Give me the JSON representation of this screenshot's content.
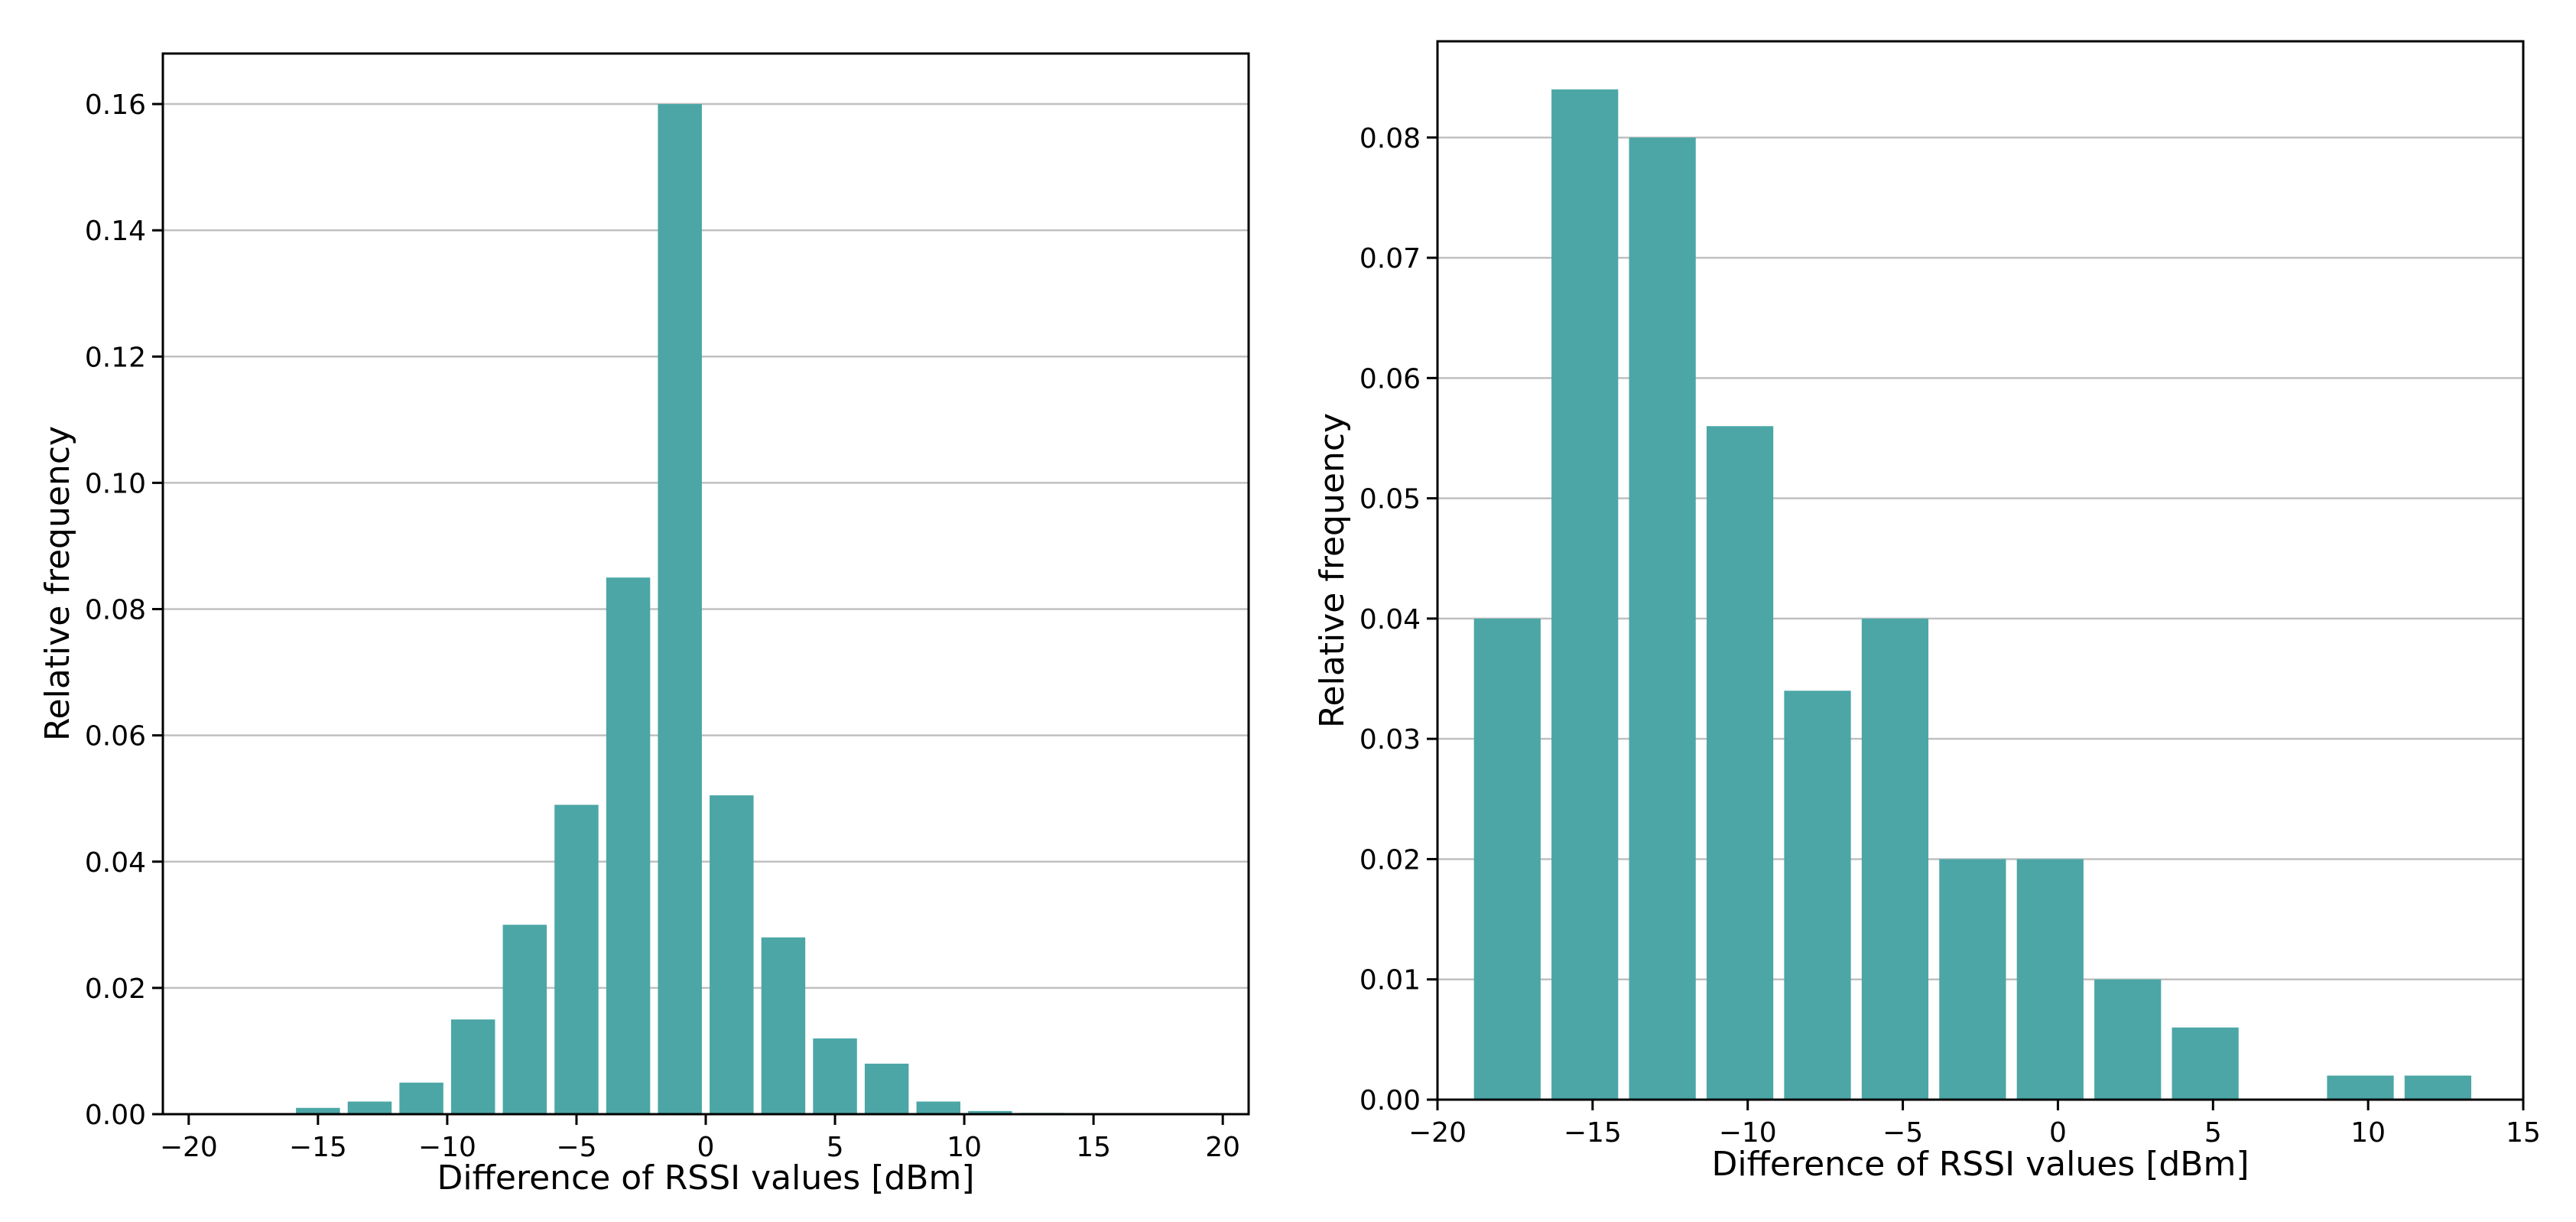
{
  "colors": {
    "bar": "#4ca6a6",
    "grid": "#c0c0c0",
    "axis": "#000000"
  },
  "chart_data": [
    {
      "type": "bar",
      "title": "",
      "xlabel": "Difference of RSSI values [dBm]",
      "ylabel": "Relative frequency",
      "xlim": [
        -21,
        21
      ],
      "ylim": [
        0,
        0.168
      ],
      "grid": "horizontal",
      "bar_width": 1.7,
      "x": [
        -19,
        -17,
        -15,
        -13,
        -11,
        -9,
        -7,
        -5,
        -3,
        -1,
        1,
        3,
        5,
        7,
        9,
        11,
        13,
        15,
        17,
        19
      ],
      "values": [
        0.0,
        0.0,
        0.001,
        0.002,
        0.005,
        0.015,
        0.03,
        0.049,
        0.085,
        0.16,
        0.0505,
        0.028,
        0.012,
        0.008,
        0.002,
        0.0005,
        0.0002,
        0.0,
        0.0,
        0.0
      ],
      "xticks": [
        -20,
        -15,
        -10,
        -5,
        0,
        5,
        10,
        15,
        20
      ],
      "xtick_labels": [
        "−20",
        "−15",
        "−10",
        "−5",
        "0",
        "5",
        "10",
        "15",
        "20"
      ],
      "yticks": [
        0.0,
        0.02,
        0.04,
        0.06,
        0.08,
        0.1,
        0.12,
        0.14,
        0.16
      ],
      "ytick_labels": [
        "0.00",
        "0.02",
        "0.04",
        "0.06",
        "0.08",
        "0.10",
        "0.12",
        "0.14",
        "0.16"
      ]
    },
    {
      "type": "bar",
      "title": "",
      "xlabel": "Difference of RSSI values [dBm]",
      "ylabel": "Relative frequency",
      "xlim": [
        -20,
        15
      ],
      "ylim": [
        0,
        0.088
      ],
      "grid": "horizontal",
      "bar_width": 2.15,
      "x": [
        -17.75,
        -15.25,
        -12.75,
        -10.25,
        -7.75,
        -5.25,
        -2.75,
        -0.25,
        2.25,
        4.75,
        7.25,
        9.75,
        12.25
      ],
      "values": [
        0.04,
        0.084,
        0.08,
        0.056,
        0.034,
        0.04,
        0.02,
        0.02,
        0.01,
        0.006,
        0.0,
        0.002,
        0.002
      ],
      "xticks": [
        -20,
        -15,
        -10,
        -5,
        0,
        5,
        10,
        15
      ],
      "xtick_labels": [
        "−20",
        "−15",
        "−10",
        "−5",
        "0",
        "5",
        "10",
        "15"
      ],
      "yticks": [
        0.0,
        0.01,
        0.02,
        0.03,
        0.04,
        0.05,
        0.06,
        0.07,
        0.08
      ],
      "ytick_labels": [
        "0.00",
        "0.01",
        "0.02",
        "0.03",
        "0.04",
        "0.05",
        "0.06",
        "0.07",
        "0.08"
      ]
    }
  ]
}
